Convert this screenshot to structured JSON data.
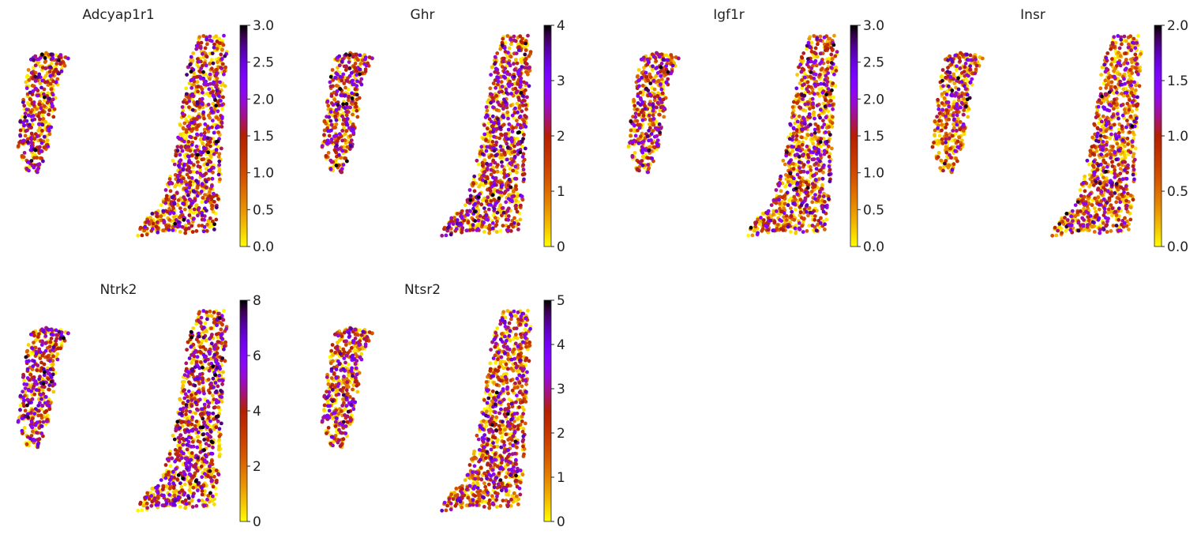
{
  "chart_data": {
    "type": "scatter",
    "description_kind": "embedding scatter plots colored by gene expression",
    "colormap": "gnuplot_r",
    "colormap_stops": [
      "#ffff00",
      "#e6a000",
      "#c04000",
      "#a000c0",
      "#7020ff",
      "#000000"
    ],
    "panels": [
      {
        "title": "Adcyap1r1",
        "vmin": 0,
        "vmax": 3.0,
        "ticks": [
          "0.0",
          "0.5",
          "1.0",
          "1.5",
          "2.0",
          "2.5",
          "3.0"
        ],
        "tick_values": [
          0,
          0.5,
          1,
          1.5,
          2,
          2.5,
          3
        ],
        "mean_level": 0.35
      },
      {
        "title": "Ghr",
        "vmin": 0,
        "vmax": 4,
        "ticks": [
          "0",
          "1",
          "2",
          "3",
          "4"
        ],
        "tick_values": [
          0,
          1,
          2,
          3,
          4
        ],
        "mean_level": 0.35
      },
      {
        "title": "Igf1r",
        "vmin": 0,
        "vmax": 3.0,
        "ticks": [
          "0.0",
          "0.5",
          "1.0",
          "1.5",
          "2.0",
          "2.5",
          "3.0"
        ],
        "tick_values": [
          0,
          0.5,
          1,
          1.5,
          2,
          2.5,
          3
        ],
        "mean_level": 0.3
      },
      {
        "title": "Insr",
        "vmin": 0,
        "vmax": 2.0,
        "ticks": [
          "0.0",
          "0.5",
          "1.0",
          "1.5",
          "2.0"
        ],
        "tick_values": [
          0,
          0.5,
          1,
          1.5,
          2
        ],
        "mean_level": 0.25
      },
      {
        "title": "Ntrk2",
        "vmin": 0,
        "vmax": 8,
        "ticks": [
          "0",
          "2",
          "4",
          "6",
          "8"
        ],
        "tick_values": [
          0,
          2,
          4,
          6,
          8
        ],
        "mean_level": 0.45
      },
      {
        "title": "Ntsr2",
        "vmin": 0,
        "vmax": 5,
        "ticks": [
          "0",
          "1",
          "2",
          "3",
          "4",
          "5"
        ],
        "tick_values": [
          0,
          1,
          2,
          3,
          4,
          5
        ],
        "mean_level": 0.3
      }
    ]
  }
}
